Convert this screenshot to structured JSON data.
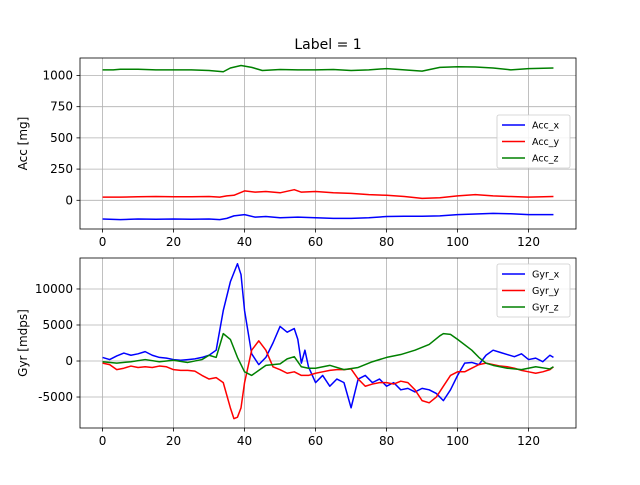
{
  "chart_data": [
    {
      "type": "line",
      "title": "Label = 1",
      "xlabel": "",
      "ylabel": "Acc [mg]",
      "xlim": [
        -6.35,
        133.35
      ],
      "ylim": [
        -230,
        1140
      ],
      "xticks": [
        0,
        20,
        40,
        60,
        80,
        100,
        120
      ],
      "yticks": [
        0,
        250,
        500,
        750,
        1000
      ],
      "grid": true,
      "legend_position": "right",
      "series": [
        {
          "name": "Acc_x",
          "color": "#0000ff",
          "x": [
            0,
            5,
            10,
            15,
            20,
            25,
            30,
            33,
            35,
            37,
            40,
            43,
            46,
            50,
            55,
            60,
            65,
            70,
            75,
            80,
            85,
            90,
            95,
            100,
            105,
            110,
            115,
            120,
            127
          ],
          "y": [
            -150,
            -155,
            -150,
            -152,
            -150,
            -152,
            -150,
            -155,
            -145,
            -125,
            -115,
            -135,
            -130,
            -140,
            -135,
            -140,
            -145,
            -145,
            -140,
            -130,
            -128,
            -128,
            -125,
            -115,
            -110,
            -105,
            -108,
            -115,
            -115
          ]
        },
        {
          "name": "Acc_y",
          "color": "#ff0000",
          "x": [
            0,
            5,
            10,
            15,
            20,
            25,
            30,
            33,
            35,
            37,
            40,
            43,
            46,
            50,
            54,
            56,
            60,
            65,
            70,
            75,
            80,
            85,
            90,
            95,
            100,
            105,
            110,
            115,
            120,
            127
          ],
          "y": [
            25,
            25,
            28,
            30,
            28,
            28,
            30,
            25,
            35,
            40,
            75,
            65,
            70,
            60,
            85,
            65,
            70,
            60,
            55,
            45,
            40,
            30,
            15,
            20,
            35,
            45,
            35,
            30,
            25,
            30
          ]
        },
        {
          "name": "Acc_z",
          "color": "#008000",
          "x": [
            0,
            3,
            5,
            10,
            15,
            20,
            25,
            30,
            34,
            36,
            39,
            42,
            45,
            50,
            55,
            60,
            65,
            70,
            75,
            80,
            85,
            90,
            95,
            100,
            105,
            110,
            115,
            120,
            127
          ],
          "y": [
            1045,
            1045,
            1050,
            1050,
            1045,
            1045,
            1045,
            1040,
            1030,
            1060,
            1080,
            1065,
            1040,
            1048,
            1045,
            1045,
            1048,
            1040,
            1045,
            1055,
            1045,
            1035,
            1065,
            1070,
            1068,
            1060,
            1045,
            1055,
            1060
          ]
        }
      ]
    },
    {
      "type": "line",
      "title": "",
      "xlabel": "",
      "ylabel": "Gyr [mdps]",
      "xlim": [
        -6.35,
        133.35
      ],
      "ylim": [
        -9300,
        14300
      ],
      "xticks": [
        0,
        20,
        40,
        60,
        80,
        100,
        120
      ],
      "yticks": [
        -5000,
        0,
        5000,
        10000
      ],
      "grid": true,
      "legend_position": "upper right",
      "series": [
        {
          "name": "Gyr_x",
          "color": "#0000ff",
          "x": [
            0,
            2,
            4,
            6,
            8,
            10,
            12,
            14,
            16,
            18,
            20,
            22,
            24,
            26,
            28,
            30,
            32,
            34,
            36,
            38,
            39,
            40,
            42,
            44,
            46,
            48,
            50,
            52,
            54,
            55,
            56,
            57,
            58,
            60,
            62,
            64,
            66,
            68,
            70,
            72,
            74,
            76,
            78,
            80,
            82,
            84,
            86,
            88,
            90,
            92,
            94,
            96,
            98,
            100,
            102,
            104,
            106,
            108,
            110,
            112,
            114,
            116,
            118,
            120,
            122,
            124,
            126,
            127
          ],
          "y": [
            500,
            200,
            700,
            1100,
            800,
            1000,
            1300,
            800,
            500,
            400,
            200,
            100,
            200,
            300,
            500,
            800,
            1500,
            7000,
            11000,
            13500,
            12000,
            7000,
            1000,
            -500,
            500,
            2500,
            4800,
            4000,
            4500,
            3000,
            -300,
            1500,
            -800,
            -3000,
            -2000,
            -3500,
            -2500,
            -3000,
            -6500,
            -2500,
            -2000,
            -3000,
            -2500,
            -3500,
            -3000,
            -4000,
            -3800,
            -4300,
            -3800,
            -4000,
            -4500,
            -5500,
            -4000,
            -2000,
            -300,
            -200,
            -500,
            800,
            1500,
            1200,
            900,
            600,
            1000,
            200,
            400,
            -100,
            800,
            500
          ]
        },
        {
          "name": "Gyr_y",
          "color": "#ff0000",
          "x": [
            0,
            2,
            4,
            6,
            8,
            10,
            12,
            14,
            16,
            18,
            20,
            22,
            24,
            26,
            28,
            30,
            32,
            34,
            36,
            37,
            38,
            39,
            40,
            42,
            44,
            46,
            48,
            50,
            52,
            54,
            56,
            58,
            60,
            62,
            64,
            66,
            68,
            70,
            72,
            74,
            76,
            78,
            80,
            82,
            84,
            86,
            88,
            90,
            92,
            94,
            96,
            98,
            100,
            102,
            104,
            106,
            108,
            110,
            112,
            114,
            116,
            118,
            120,
            122,
            124,
            126,
            127
          ],
          "y": [
            -300,
            -500,
            -1200,
            -1000,
            -700,
            -900,
            -800,
            -900,
            -700,
            -800,
            -1200,
            -1300,
            -1300,
            -1400,
            -2000,
            -2500,
            -2300,
            -3000,
            -6500,
            -8000,
            -7800,
            -6500,
            -3000,
            1500,
            2800,
            1500,
            -800,
            -1200,
            -1700,
            -1500,
            -2000,
            -2000,
            -1700,
            -1500,
            -1300,
            -1200,
            -1200,
            -1100,
            -2500,
            -3500,
            -3200,
            -3000,
            -3000,
            -3200,
            -2800,
            -3000,
            -4000,
            -5500,
            -5800,
            -5000,
            -3500,
            -2000,
            -1500,
            -1500,
            -1000,
            -500,
            -300,
            -500,
            -700,
            -800,
            -1000,
            -1300,
            -1500,
            -1700,
            -1500,
            -1200,
            -800
          ]
        },
        {
          "name": "Gyr_z",
          "color": "#008000",
          "x": [
            0,
            4,
            8,
            12,
            16,
            20,
            24,
            28,
            30,
            32,
            34,
            36,
            38,
            40,
            42,
            44,
            46,
            48,
            50,
            52,
            54,
            56,
            58,
            60,
            64,
            68,
            72,
            76,
            80,
            84,
            88,
            92,
            95,
            96,
            98,
            100,
            104,
            106,
            108,
            110,
            114,
            118,
            122,
            126,
            127
          ],
          "y": [
            -100,
            -300,
            -100,
            200,
            -100,
            100,
            -200,
            200,
            800,
            500,
            3800,
            3000,
            500,
            -1500,
            -2000,
            -1300,
            -600,
            -500,
            -400,
            300,
            600,
            -800,
            -1000,
            -1000,
            -600,
            -1200,
            -900,
            -100,
            500,
            900,
            1500,
            2300,
            3500,
            3800,
            3700,
            3000,
            1500,
            500,
            -300,
            -600,
            -1000,
            -1200,
            -800,
            -1100,
            -800
          ]
        }
      ]
    }
  ]
}
